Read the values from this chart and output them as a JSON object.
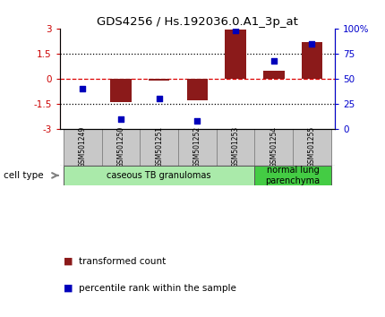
{
  "title": "GDS4256 / Hs.192036.0.A1_3p_at",
  "samples": [
    "GSM501249",
    "GSM501250",
    "GSM501251",
    "GSM501252",
    "GSM501253",
    "GSM501254",
    "GSM501255"
  ],
  "transformed_count": [
    0.02,
    -1.4,
    -0.1,
    -1.3,
    2.95,
    0.5,
    2.2
  ],
  "percentile_rank": [
    40,
    10,
    30,
    8,
    98,
    68,
    85
  ],
  "ylim_left": [
    -3,
    3
  ],
  "ylim_right": [
    0,
    100
  ],
  "yticks_left": [
    -3,
    -1.5,
    0,
    1.5,
    3
  ],
  "yticks_right": [
    0,
    25,
    50,
    75,
    100
  ],
  "ytick_labels_left": [
    "-3",
    "-1.5",
    "0",
    "1.5",
    "3"
  ],
  "ytick_labels_right": [
    "0",
    "25",
    "50",
    "75",
    "100%"
  ],
  "bar_color": "#8B1A1A",
  "scatter_color": "#0000BB",
  "hline_color": "#DD0000",
  "dotted_line_color": "#000000",
  "cell_type_groups": [
    {
      "label": "caseous TB granulomas",
      "samples": [
        0,
        1,
        2,
        3,
        4
      ],
      "color": "#AAEAAA"
    },
    {
      "label": "normal lung\nparenchyma",
      "samples": [
        5,
        6
      ],
      "color": "#44CC44"
    }
  ],
  "legend_items": [
    {
      "label": "transformed count",
      "color": "#8B1A1A"
    },
    {
      "label": "percentile rank within the sample",
      "color": "#0000BB"
    }
  ],
  "left_axis_color": "#CC0000",
  "right_axis_color": "#0000CC",
  "bg_color": "#FFFFFF",
  "bar_width": 0.55,
  "cell_type_label": "cell type",
  "sample_box_color": "#C8C8C8"
}
